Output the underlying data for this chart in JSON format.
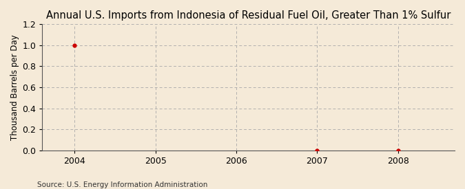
{
  "title": "Annual U.S. Imports from Indonesia of Residual Fuel Oil, Greater Than 1% Sulfur",
  "ylabel": "Thousand Barrels per Day",
  "source": "Source: U.S. Energy Information Administration",
  "xlim": [
    2003.6,
    2008.7
  ],
  "ylim": [
    0.0,
    1.2
  ],
  "yticks": [
    0.0,
    0.2,
    0.4,
    0.6,
    0.8,
    1.0,
    1.2
  ],
  "xticks": [
    2004,
    2005,
    2006,
    2007,
    2008
  ],
  "data_x": [
    2004,
    2007,
    2008
  ],
  "data_y": [
    1.0,
    0.0,
    0.0
  ],
  "marker_color": "#cc0000",
  "background_color": "#f5ead8",
  "plot_bg_color": "#f5ead8",
  "grid_color": "#aaaaaa",
  "spine_color": "#555555",
  "title_fontsize": 10.5,
  "label_fontsize": 8.5,
  "tick_fontsize": 9,
  "source_fontsize": 7.5
}
